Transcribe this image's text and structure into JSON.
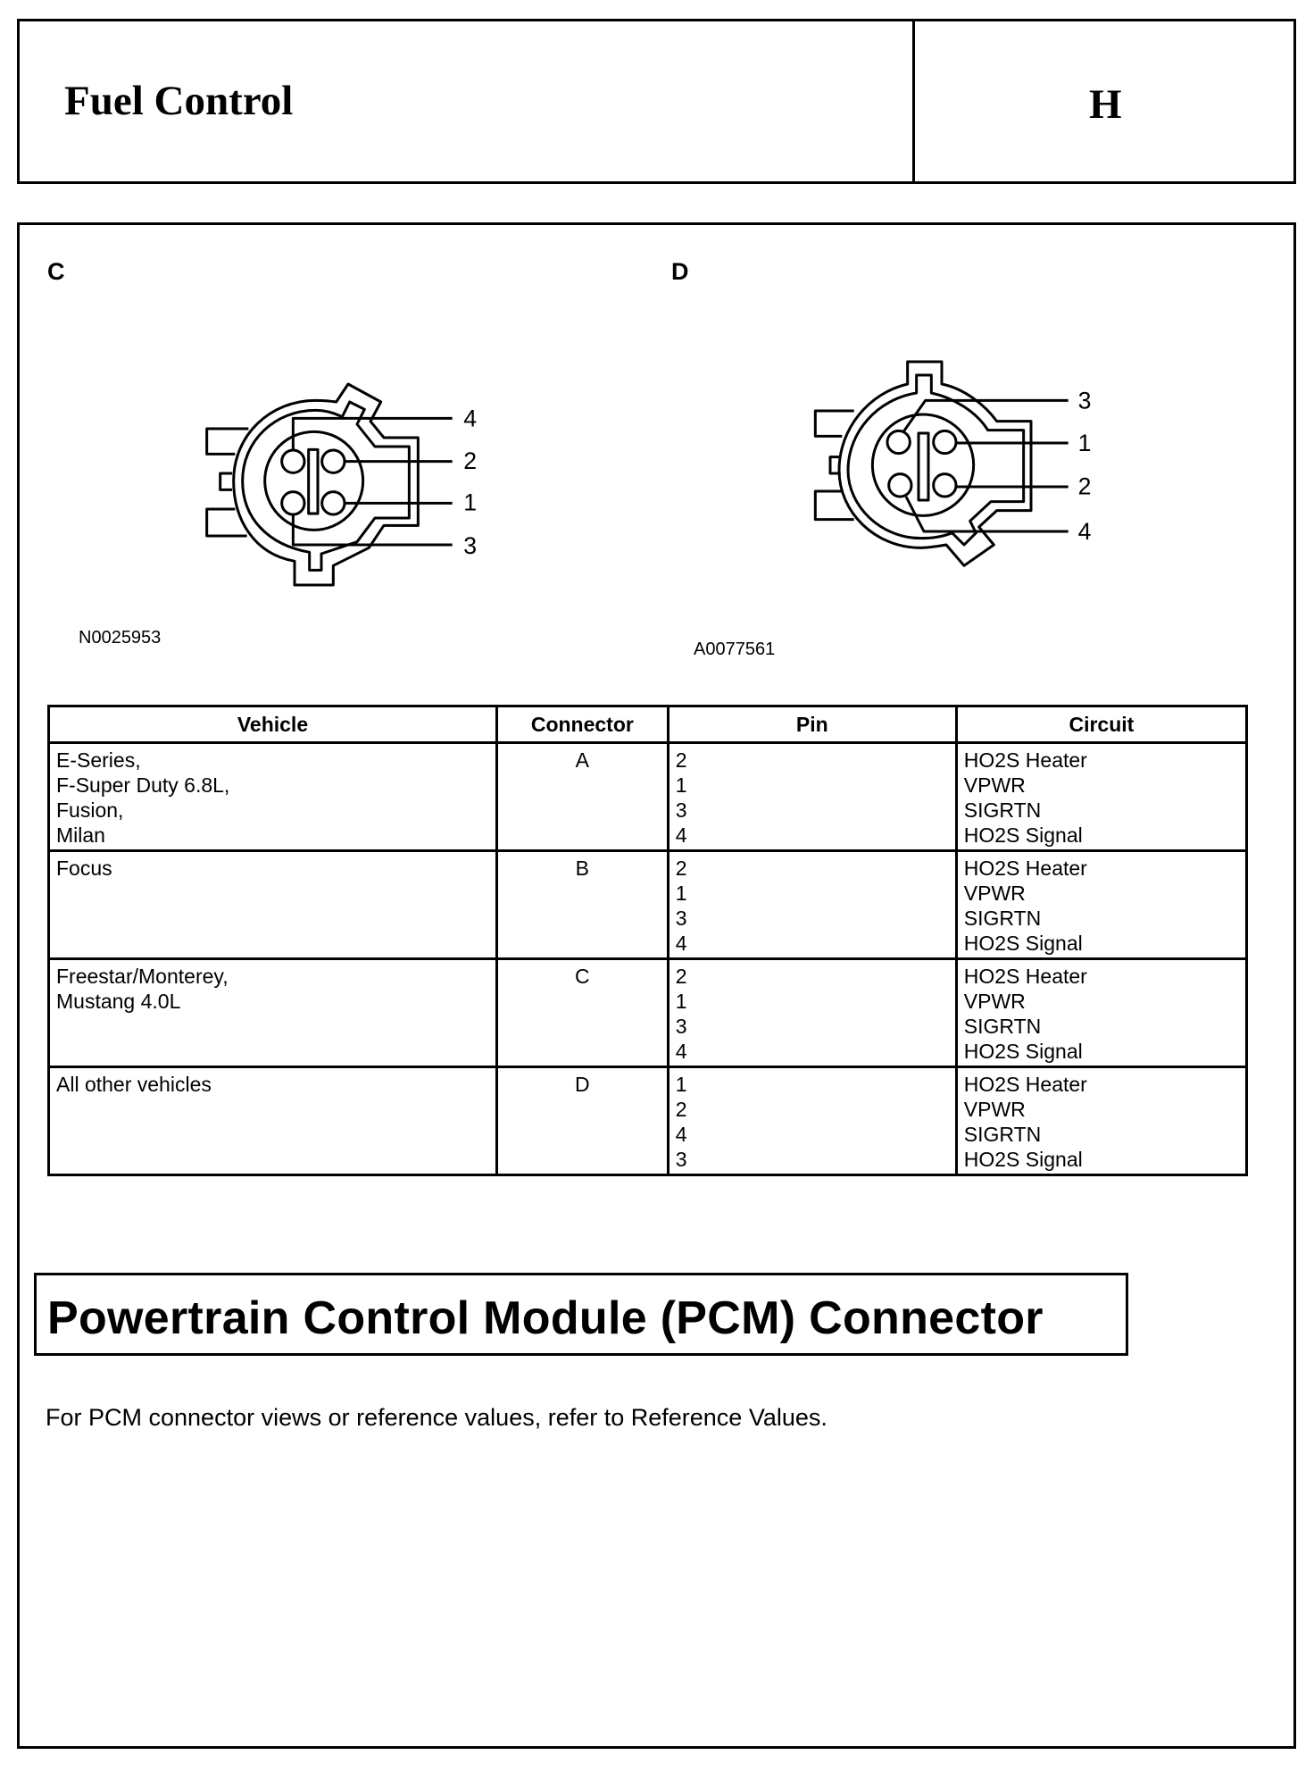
{
  "header": {
    "title": "Fuel Control",
    "section": "H"
  },
  "connectors": [
    {
      "label": "C",
      "code": "N0025953",
      "pins": [
        "4",
        "2",
        "1",
        "3"
      ]
    },
    {
      "label": "D",
      "code": "A0077561",
      "pins": [
        "3",
        "1",
        "2",
        "4"
      ]
    }
  ],
  "table": {
    "headers": [
      "Vehicle",
      "Connector",
      "Pin",
      "Circuit"
    ],
    "rows": [
      {
        "vehicle": [
          "E-Series,",
          "F-Super Duty 6.8L,",
          "Fusion,",
          "Milan"
        ],
        "connector": "A",
        "pins": [
          "2",
          "1",
          "3",
          "4"
        ],
        "circuits": [
          "HO2S Heater",
          "VPWR",
          "SIGRTN",
          "HO2S Signal"
        ]
      },
      {
        "vehicle": [
          "Focus"
        ],
        "connector": "B",
        "pins": [
          "2",
          "1",
          "3",
          "4"
        ],
        "circuits": [
          "HO2S Heater",
          "VPWR",
          "SIGRTN",
          "HO2S Signal"
        ]
      },
      {
        "vehicle": [
          "Freestar/Monterey,",
          "Mustang 4.0L"
        ],
        "connector": "C",
        "pins": [
          "2",
          "1",
          "3",
          "4"
        ],
        "circuits": [
          "HO2S Heater",
          "VPWR",
          "SIGRTN",
          "HO2S Signal"
        ]
      },
      {
        "vehicle": [
          "All other vehicles"
        ],
        "connector": "D",
        "pins": [
          "1",
          "2",
          "4",
          "3"
        ],
        "circuits": [
          "HO2S Heater",
          "VPWR",
          "SIGRTN",
          "HO2S Signal"
        ]
      }
    ]
  },
  "pcm": {
    "title": "Powertrain Control Module (PCM) Connector",
    "text": "For PCM connector views or reference values, refer to Reference Values."
  }
}
